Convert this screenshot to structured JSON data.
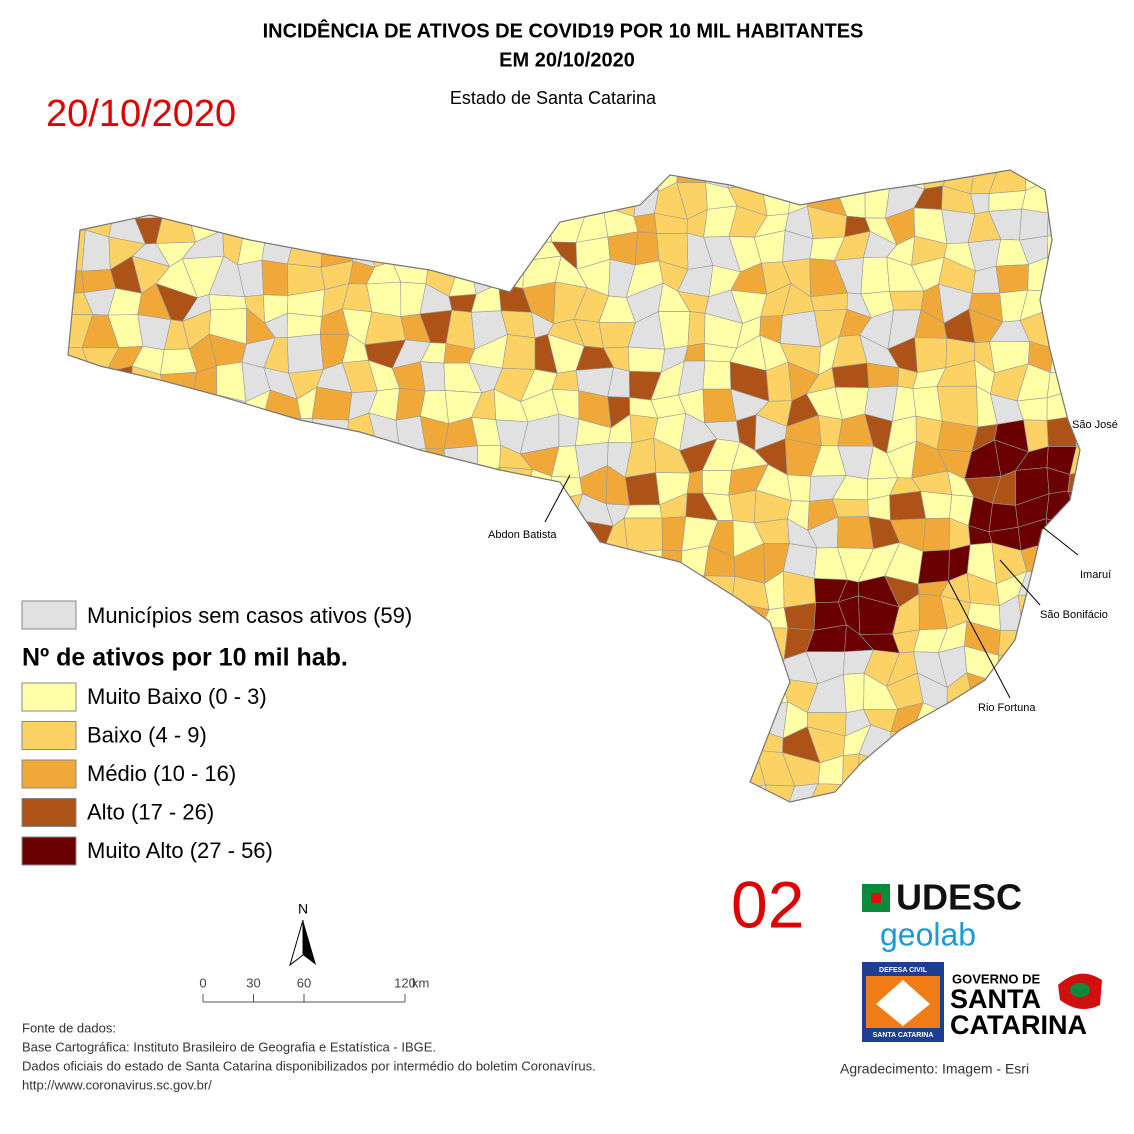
{
  "header": {
    "title": "INCIDÊNCIA DE ATIVOS DE COVID19 POR 10 MIL HABITANTES",
    "title_line2": "EM 20/10/2020",
    "subtitle": "Estado de Santa Catarina",
    "date_stamp": "20/10/2020"
  },
  "page_number": "02",
  "place_labels": [
    "São José",
    "Abdon Batista",
    "Imaruí",
    "São Bonifácio",
    "Rio Fortuna"
  ],
  "legend": {
    "no_cases": {
      "label": "Municípios sem casos ativos (59)",
      "color": "#e1e1e1"
    },
    "heading": "Nº de ativos por 10 mil hab.",
    "classes": [
      {
        "label": "Muito Baixo (0 - 3)",
        "color": "#ffffa8"
      },
      {
        "label": "Baixo (4 - 9)",
        "color": "#fbd263"
      },
      {
        "label": "Médio (10 - 16)",
        "color": "#f0a838"
      },
      {
        "label": "Alto (17 - 26)",
        "color": "#ad5318"
      },
      {
        "label": "Muito Alto (27 - 56)",
        "color": "#6a0000"
      }
    ]
  },
  "north_arrow": "N",
  "scale_bar": {
    "ticks": [
      0,
      30,
      60,
      120
    ],
    "unit": "km"
  },
  "sources": [
    "Fonte de dados:",
    "Base Cartográfica: Instituto Brasileiro de Geografia e Estatística - IBGE.",
    "Dados oficiais do estado de Santa Catarina disponibilizados por intermédio do boletim Coronavírus.",
    "http://www.coronavirus.sc.gov.br/"
  ],
  "credit": "Agradecimento: Imagem - Esri",
  "logos": {
    "udesc": "UDESC",
    "geolab": "geolab",
    "defesa_top": "DEFESA CIVIL",
    "defesa_bottom": "SANTA CATARINA",
    "gov_line1": "GOVERNO DE",
    "gov_line2": "SANTA",
    "gov_line3": "CATARINA"
  }
}
